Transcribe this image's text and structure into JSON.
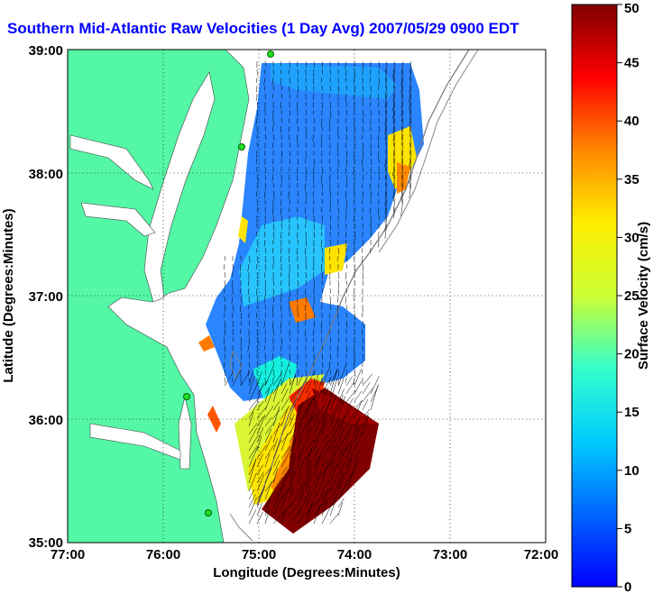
{
  "title": "Southern Mid-Atlantic Raw Velocities (1 Day Avg) 2007/05/29 0900 EDT",
  "colors": {
    "land": "#54f7a6",
    "plot_background": "#ffffff",
    "vectors": "#000000",
    "title": "#0000ff"
  },
  "map": {
    "x_label": "Longitude (Degrees:Minutes)",
    "y_label": "Latitude (Degrees:Minutes)",
    "x_ticks": [
      "77:00",
      "76:00",
      "75:00",
      "74:00",
      "73:00",
      "72:00"
    ],
    "y_ticks": [
      "39:00",
      "38:00",
      "37:00",
      "36:00",
      "35:00"
    ],
    "lon_range": [
      -77,
      -72
    ],
    "lat_range": [
      35,
      39
    ],
    "grid": "dotted"
  },
  "colorbar": {
    "label": "Surface Velocity (cm/s)",
    "min": 0,
    "max": 50,
    "ticks": [
      "0",
      "5",
      "10",
      "15",
      "20",
      "25",
      "30",
      "35",
      "40",
      "45",
      "50"
    ],
    "colormap": "jet"
  }
}
